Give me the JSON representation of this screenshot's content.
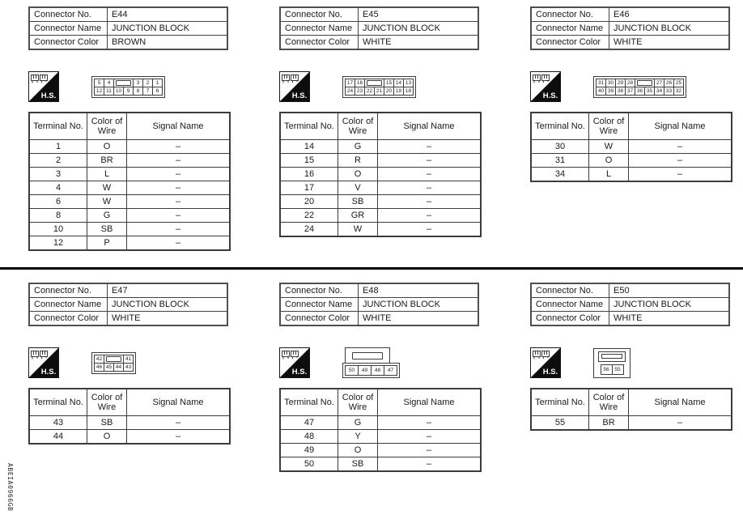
{
  "page": {
    "doc_code": "ABEIA0966GB",
    "background": "#ffffff",
    "line_color": "#3c3c3c",
    "hs_logo_black": "#0d0d0d"
  },
  "labels": {
    "connector_no": "Connector No.",
    "connector_name": "Connector Name",
    "connector_color": "Connector Color",
    "terminal_no": "Terminal No.",
    "color_of_wire": "Color of Wire",
    "signal_name": "Signal Name",
    "hs": "H.S."
  },
  "connectors": [
    {
      "no": "E44",
      "name": "JUNCTION BLOCK",
      "color": "BROWN",
      "pins": {
        "shape": "grid",
        "rows": [
          [
            "5",
            "4",
            "SLOT",
            "3",
            "2",
            "1"
          ],
          [
            "12",
            "11",
            "10",
            "9",
            "8",
            "7",
            "6"
          ]
        ]
      },
      "terminals": [
        {
          "no": "1",
          "wire": "O",
          "signal": "–"
        },
        {
          "no": "2",
          "wire": "BR",
          "signal": "–"
        },
        {
          "no": "3",
          "wire": "L",
          "signal": "–"
        },
        {
          "no": "4",
          "wire": "W",
          "signal": "–"
        },
        {
          "no": "6",
          "wire": "W",
          "signal": "–"
        },
        {
          "no": "8",
          "wire": "G",
          "signal": "–"
        },
        {
          "no": "10",
          "wire": "SB",
          "signal": "–"
        },
        {
          "no": "12",
          "wire": "P",
          "signal": "–"
        }
      ]
    },
    {
      "no": "E45",
      "name": "JUNCTION BLOCK",
      "color": "WHITE",
      "pins": {
        "shape": "grid",
        "rows": [
          [
            "17",
            "16",
            "SLOT",
            "15",
            "14",
            "13"
          ],
          [
            "24",
            "23",
            "22",
            "21",
            "20",
            "19",
            "18"
          ]
        ]
      },
      "terminals": [
        {
          "no": "14",
          "wire": "G",
          "signal": "–"
        },
        {
          "no": "15",
          "wire": "R",
          "signal": "–"
        },
        {
          "no": "16",
          "wire": "O",
          "signal": "–"
        },
        {
          "no": "17",
          "wire": "V",
          "signal": "–"
        },
        {
          "no": "20",
          "wire": "SB",
          "signal": "–"
        },
        {
          "no": "22",
          "wire": "GR",
          "signal": "–"
        },
        {
          "no": "24",
          "wire": "W",
          "signal": "–"
        }
      ]
    },
    {
      "no": "E46",
      "name": "JUNCTION BLOCK",
      "color": "WHITE",
      "pins": {
        "shape": "grid",
        "rows": [
          [
            "31",
            "30",
            "29",
            "28",
            "SLOT",
            "27",
            "26",
            "25"
          ],
          [
            "40",
            "39",
            "38",
            "37",
            "36",
            "35",
            "34",
            "33",
            "32"
          ]
        ]
      },
      "terminals": [
        {
          "no": "30",
          "wire": "W",
          "signal": "–"
        },
        {
          "no": "31",
          "wire": "O",
          "signal": "–"
        },
        {
          "no": "34",
          "wire": "L",
          "signal": "–"
        }
      ]
    },
    {
      "no": "E47",
      "name": "JUNCTION BLOCK",
      "color": "WHITE",
      "pins": {
        "shape": "grid",
        "rows": [
          [
            "42",
            "SLOT",
            "41"
          ],
          [
            "46",
            "45",
            "44",
            "43"
          ]
        ]
      },
      "terminals": [
        {
          "no": "43",
          "wire": "SB",
          "signal": "–"
        },
        {
          "no": "44",
          "wire": "O",
          "signal": "–"
        }
      ]
    },
    {
      "no": "E48",
      "name": "JUNCTION BLOCK",
      "color": "WHITE",
      "pins": {
        "shape": "plug",
        "rows": [
          [
            "50",
            "49",
            "48",
            "47"
          ]
        ]
      },
      "terminals": [
        {
          "no": "47",
          "wire": "G",
          "signal": "–"
        },
        {
          "no": "48",
          "wire": "Y",
          "signal": "–"
        },
        {
          "no": "49",
          "wire": "O",
          "signal": "–"
        },
        {
          "no": "50",
          "wire": "SB",
          "signal": "–"
        }
      ]
    },
    {
      "no": "E50",
      "name": "JUNCTION BLOCK",
      "color": "WHITE",
      "pins": {
        "shape": "socket",
        "rows": [
          [
            "56",
            "55"
          ]
        ]
      },
      "terminals": [
        {
          "no": "55",
          "wire": "BR",
          "signal": "–"
        }
      ]
    }
  ]
}
